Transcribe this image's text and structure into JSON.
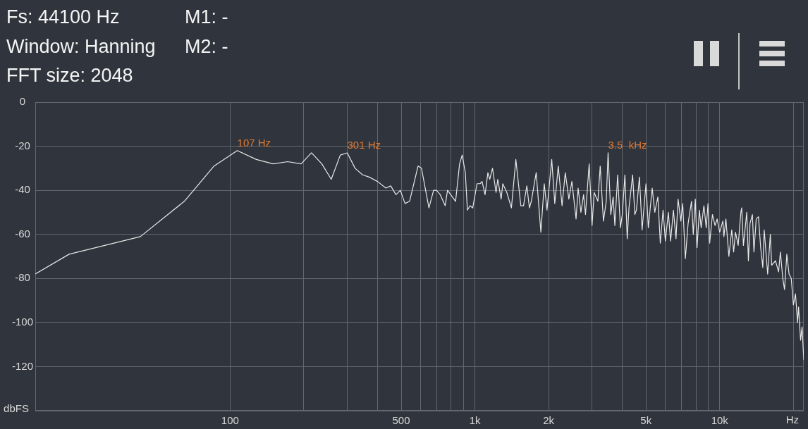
{
  "chart_data": {
    "type": "line",
    "annotations": [
      "Fs: 44100 Hz",
      "Window: Hanning",
      "FFT size: 2048",
      "M1: -",
      "M2: -",
      {
        "text": "107 Hz",
        "x": 107,
        "y": -22
      },
      {
        "text": "301 Hz",
        "x": 301,
        "y": -23
      },
      {
        "text": "3.5  kHz",
        "x": 3500,
        "y": -23
      }
    ],
    "xlabel": "Hz",
    "ylabel": "dbFS",
    "color": "#e8e8e8",
    "x": [
      16,
      22,
      43,
      65,
      86,
      107,
      128,
      150,
      172,
      195,
      215,
      237,
      259,
      282,
      301,
      324,
      348,
      370,
      400,
      433,
      453,
      476,
      496,
      518,
      541,
      586,
      605,
      649,
      678,
      697,
      722,
      756,
      773,
      834,
      866,
      887,
      914,
      932,
      955,
      980,
      1020,
      1050,
      1070,
      1100,
      1130,
      1150,
      1180,
      1220,
      1240,
      1280,
      1300,
      1350,
      1410,
      1470,
      1540,
      1580,
      1630,
      1670,
      1700,
      1780,
      1860,
      1920,
      1970,
      2060,
      2120,
      2190,
      2270,
      2340,
      2420,
      2490,
      2590,
      2640,
      2710,
      2780,
      2830,
      2930,
      3010,
      3070,
      3180,
      3250,
      3350,
      3440,
      3500,
      3590,
      3670,
      3730,
      3830,
      3930,
      4000,
      4100,
      4190,
      4260,
      4410,
      4500,
      4570,
      4700,
      4820,
      5000,
      5110,
      5300,
      5430,
      5590,
      5720,
      5870,
      6000,
      6170,
      6300,
      6470,
      6630,
      6760,
      6940,
      7060,
      7240,
      7430,
      7670,
      7800,
      7950,
      8080,
      8260,
      8400,
      8620,
      8810,
      8960,
      9100,
      9340,
      9570,
      9760,
      10000,
      10300,
      10400,
      10600,
      10900,
      11200,
      11400,
      11600,
      11900,
      12200,
      12300,
      12500,
      12900,
      13100,
      13300,
      13600,
      13800,
      14100,
      14400,
      14700,
      15000,
      15200,
      15700,
      16100,
      16300,
      16900,
      17400,
      17700,
      18100,
      18400,
      18800,
      19200,
      19600,
      20000,
      20400,
      20800,
      21000,
      21400,
      21700,
      22050
    ],
    "values": [
      -78,
      -69,
      -61,
      -45,
      -29,
      -22,
      -26,
      -28,
      -27,
      -28,
      -23,
      -28,
      -35,
      -24,
      -23,
      -30,
      -33,
      -34,
      -36,
      -39,
      -38,
      -42,
      -40,
      -46,
      -45,
      -29,
      -30,
      -48,
      -40,
      -40,
      -42,
      -47,
      -40,
      -45,
      -28,
      -24,
      -32,
      -49,
      -47,
      -48,
      -37,
      -37,
      -36,
      -42,
      -32,
      -35,
      -30,
      -41,
      -35,
      -44,
      -37,
      -41,
      -48,
      -26,
      -47,
      -47,
      -38,
      -48,
      -45,
      -32,
      -59,
      -37,
      -49,
      -26,
      -46,
      -29,
      -47,
      -32,
      -44,
      -36,
      -53,
      -39,
      -50,
      -42,
      -51,
      -28,
      -56,
      -41,
      -45,
      -29,
      -54,
      -45,
      -23,
      -51,
      -43,
      -56,
      -33,
      -57,
      -51,
      -33,
      -62,
      -48,
      -33,
      -51,
      -49,
      -34,
      -58,
      -37,
      -57,
      -39,
      -50,
      -43,
      -64,
      -49,
      -63,
      -50,
      -63,
      -49,
      -62,
      -44,
      -54,
      -46,
      -71,
      -55,
      -45,
      -60,
      -44,
      -66,
      -49,
      -57,
      -47,
      -57,
      -46,
      -64,
      -51,
      -56,
      -53,
      -59,
      -54,
      -61,
      -53,
      -70,
      -58,
      -68,
      -59,
      -65,
      -50,
      -48,
      -65,
      -50,
      -72,
      -55,
      -51,
      -68,
      -53,
      -52,
      -66,
      -75,
      -58,
      -78,
      -60,
      -74,
      -72,
      -77,
      -68,
      -80,
      -85,
      -69,
      -78,
      -80,
      -92,
      -87,
      -100,
      -93,
      -108,
      -102,
      -117
    ],
    "xlim": [
      16,
      22050
    ],
    "ylim": [
      -140,
      0
    ],
    "xticks": [
      100,
      {
        "value": 200,
        "label": null
      },
      {
        "value": 300,
        "label": null
      },
      {
        "value": 400,
        "label": null
      },
      500,
      {
        "value": 600,
        "label": null
      },
      {
        "value": 700,
        "label": null
      },
      {
        "value": 800,
        "label": null
      },
      {
        "value": 900,
        "label": null
      },
      {
        "value": 1000,
        "label": "1k"
      },
      {
        "value": 2000,
        "label": "2k"
      },
      {
        "value": 3000,
        "label": null
      },
      {
        "value": 4000,
        "label": null
      },
      {
        "value": 5000,
        "label": "5k"
      },
      {
        "value": 6000,
        "label": null
      },
      {
        "value": 7000,
        "label": null
      },
      {
        "value": 8000,
        "label": null
      },
      {
        "value": 9000,
        "label": null
      },
      {
        "value": 10000,
        "label": "10k"
      },
      {
        "value": 20000,
        "label": null
      }
    ],
    "yticks": [
      0,
      -20,
      -40,
      -60,
      -80,
      -100,
      -120
    ],
    "log": "x",
    "grid": true,
    "legend": false,
    "marker": "none"
  }
}
